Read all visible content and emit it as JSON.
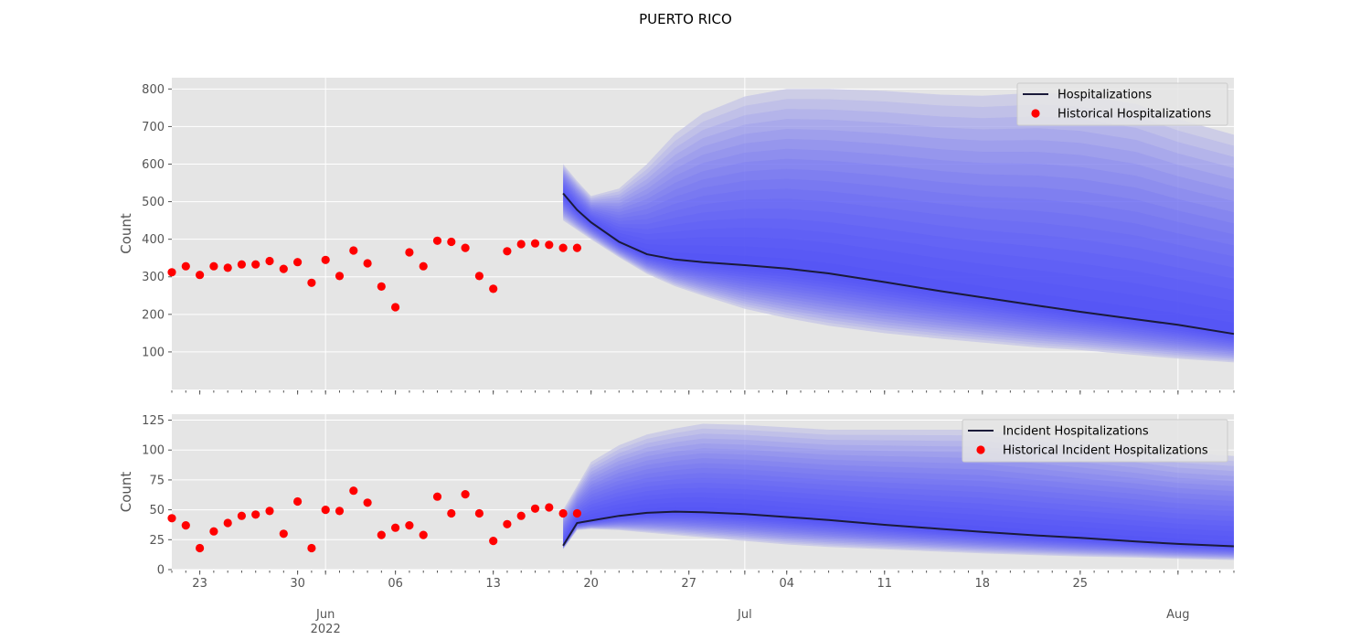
{
  "figure": {
    "title": "PUERTO RICO"
  },
  "x_axis": {
    "day_labels": [
      {
        "date": "2022-05-23",
        "label": "23"
      },
      {
        "date": "2022-05-30",
        "label": "30"
      },
      {
        "date": "2022-06-06",
        "label": "06"
      },
      {
        "date": "2022-06-13",
        "label": "13"
      },
      {
        "date": "2022-06-20",
        "label": "20"
      },
      {
        "date": "2022-06-27",
        "label": "27"
      },
      {
        "date": "2022-07-04",
        "label": "04"
      },
      {
        "date": "2022-07-11",
        "label": "11"
      },
      {
        "date": "2022-07-18",
        "label": "18"
      },
      {
        "date": "2022-07-25",
        "label": "25"
      }
    ],
    "month_labels": [
      {
        "date": "2022-06-01",
        "label": "Jun",
        "sublabel": "2022"
      },
      {
        "date": "2022-07-01",
        "label": "Jul",
        "sublabel": ""
      },
      {
        "date": "2022-08-01",
        "label": "Aug",
        "sublabel": ""
      }
    ],
    "range": [
      "2022-05-21",
      "2022-08-05"
    ]
  },
  "colors": {
    "background": "#e5e5e5",
    "grid": "#ffffff",
    "band": "#3c3cff",
    "band_outer": "#c4c4e6",
    "median": "#1a1a3a",
    "historical": "#ff0000"
  },
  "chart_data": [
    {
      "type": "line",
      "ylabel": "Count",
      "ylim": [
        0,
        830
      ],
      "yticks": [
        100,
        200,
        300,
        400,
        500,
        600,
        700,
        800
      ],
      "grid": true,
      "legend_placement": "top-right",
      "legend": [
        "Hospitalizations",
        "Historical Hospitalizations"
      ],
      "historical": {
        "name": "Historical Hospitalizations",
        "x": [
          "2022-05-21",
          "2022-05-22",
          "2022-05-23",
          "2022-05-24",
          "2022-05-25",
          "2022-05-26",
          "2022-05-27",
          "2022-05-28",
          "2022-05-29",
          "2022-05-30",
          "2022-05-31",
          "2022-06-01",
          "2022-06-02",
          "2022-06-03",
          "2022-06-04",
          "2022-06-05",
          "2022-06-06",
          "2022-06-07",
          "2022-06-08",
          "2022-06-09",
          "2022-06-10",
          "2022-06-11",
          "2022-06-12",
          "2022-06-13",
          "2022-06-14",
          "2022-06-15",
          "2022-06-16",
          "2022-06-17",
          "2022-06-18",
          "2022-06-19"
        ],
        "y": [
          312,
          328,
          305,
          328,
          324,
          333,
          333,
          342,
          321,
          339,
          284,
          345,
          302,
          370,
          336,
          274,
          219,
          365,
          328,
          396,
          393,
          377,
          302,
          268,
          368,
          387,
          389,
          385,
          377,
          377
        ]
      },
      "forecast": {
        "name": "Hospitalizations",
        "x": [
          "2022-06-18",
          "2022-06-19",
          "2022-06-20",
          "2022-06-22",
          "2022-06-24",
          "2022-06-26",
          "2022-06-28",
          "2022-07-01",
          "2022-07-04",
          "2022-07-07",
          "2022-07-11",
          "2022-07-15",
          "2022-07-18",
          "2022-07-22",
          "2022-07-25",
          "2022-07-29",
          "2022-08-01",
          "2022-08-05"
        ],
        "median": [
          522,
          478,
          445,
          393,
          360,
          346,
          339,
          331,
          322,
          309,
          286,
          262,
          245,
          223,
          207,
          187,
          172,
          148
        ],
        "lower": [
          450,
          425,
          400,
          352,
          308,
          275,
          250,
          215,
          190,
          170,
          150,
          135,
          125,
          112,
          105,
          92,
          82,
          72
        ],
        "upper": [
          600,
          555,
          515,
          535,
          600,
          680,
          735,
          780,
          800,
          800,
          795,
          785,
          782,
          790,
          785,
          760,
          720,
          678
        ]
      }
    },
    {
      "type": "line",
      "ylabel": "Count",
      "ylim": [
        0,
        130
      ],
      "yticks": [
        0,
        25,
        50,
        75,
        100,
        125
      ],
      "grid": true,
      "legend_placement": "top-right",
      "legend": [
        "Incident Hospitalizations",
        "Historical Incident Hospitalizations"
      ],
      "historical": {
        "name": "Historical Incident Hospitalizations",
        "x": [
          "2022-05-21",
          "2022-05-22",
          "2022-05-23",
          "2022-05-24",
          "2022-05-25",
          "2022-05-26",
          "2022-05-27",
          "2022-05-28",
          "2022-05-29",
          "2022-05-30",
          "2022-05-31",
          "2022-06-01",
          "2022-06-02",
          "2022-06-03",
          "2022-06-04",
          "2022-06-05",
          "2022-06-06",
          "2022-06-07",
          "2022-06-08",
          "2022-06-09",
          "2022-06-10",
          "2022-06-11",
          "2022-06-12",
          "2022-06-13",
          "2022-06-14",
          "2022-06-15",
          "2022-06-16",
          "2022-06-17",
          "2022-06-18",
          "2022-06-19"
        ],
        "y": [
          43,
          37,
          18,
          32,
          39,
          45,
          46,
          49,
          30,
          57,
          18,
          50,
          49,
          66,
          56,
          29,
          35,
          37,
          29,
          61,
          47,
          63,
          47,
          24,
          38,
          45,
          51,
          52,
          47,
          47
        ]
      },
      "forecast": {
        "name": "Incident Hospitalizations",
        "x": [
          "2022-06-18",
          "2022-06-19",
          "2022-06-20",
          "2022-06-22",
          "2022-06-24",
          "2022-06-26",
          "2022-06-28",
          "2022-07-01",
          "2022-07-04",
          "2022-07-07",
          "2022-07-11",
          "2022-07-15",
          "2022-07-18",
          "2022-07-22",
          "2022-07-25",
          "2022-07-29",
          "2022-08-01",
          "2022-08-05"
        ],
        "median": [
          20,
          39,
          41,
          45,
          47.5,
          48.5,
          48,
          46.5,
          44,
          41.5,
          37.5,
          34,
          31.5,
          28.5,
          26.5,
          23.5,
          21.5,
          19.5
        ],
        "lower": [
          17,
          33,
          34,
          33,
          31,
          29,
          27,
          24,
          21,
          19,
          17,
          15,
          13.5,
          12,
          11,
          10,
          9,
          8
        ],
        "upper": [
          50,
          70,
          90,
          104,
          113,
          118,
          122,
          121,
          119,
          117,
          117,
          117,
          117,
          112,
          108,
          103,
          98,
          95
        ]
      }
    }
  ]
}
